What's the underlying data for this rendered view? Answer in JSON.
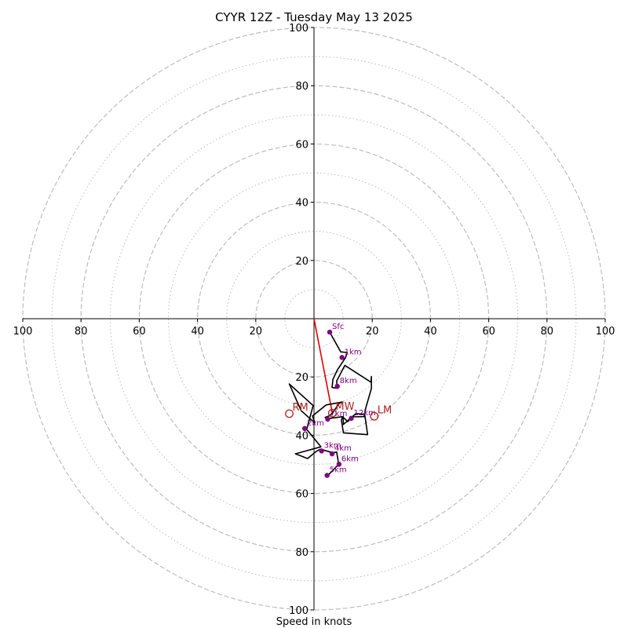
{
  "chart_data": {
    "type": "hodograph",
    "title": "CYYR 12Z - Tuesday May 13 2025",
    "xlabel": "Speed in knots",
    "range": [
      -100,
      100
    ],
    "rings_major": [
      20,
      40,
      60,
      80,
      100
    ],
    "rings_minor": [
      10,
      30,
      50,
      70,
      90
    ],
    "ticks": [
      {
        "v": -100,
        "label": "100"
      },
      {
        "v": -80,
        "label": "80"
      },
      {
        "v": -60,
        "label": "60"
      },
      {
        "v": -40,
        "label": "40"
      },
      {
        "v": -20,
        "label": "20"
      },
      {
        "v": 20,
        "label": "20"
      },
      {
        "v": 40,
        "label": "40"
      },
      {
        "v": 60,
        "label": "60"
      },
      {
        "v": 80,
        "label": "80"
      },
      {
        "v": 100,
        "label": "100"
      }
    ],
    "colors": {
      "grid": "#bdbdbd",
      "axis": "#000000",
      "trace": "#000000",
      "height_points": "#800080",
      "storm_motion": "#b22222",
      "shear_vector": "#e00000"
    },
    "hodograph": [
      [
        5.4,
        -4.6
      ],
      [
        9.2,
        -11.4
      ],
      [
        11.4,
        -11.6
      ],
      [
        10.8,
        -13.4
      ],
      [
        8,
        -17.6
      ],
      [
        6.5,
        -20.8
      ],
      [
        6.2,
        -23.6
      ],
      [
        8,
        -23.9
      ],
      [
        7.8,
        -21.4
      ],
      [
        10.6,
        -16
      ],
      [
        19.6,
        -21.8
      ],
      [
        19.7,
        -19.8
      ],
      [
        19.7,
        -24
      ],
      [
        17.8,
        -30.6
      ],
      [
        17.2,
        -33.6
      ],
      [
        13.2,
        -33.7
      ],
      [
        11.6,
        -35.3
      ],
      [
        9.8,
        -33.7
      ],
      [
        9.4,
        -34.8
      ],
      [
        10.1,
        -39.2
      ],
      [
        18.4,
        -39.8
      ],
      [
        17.4,
        -32.8
      ],
      [
        14.4,
        -32.6
      ],
      [
        10.1,
        -36.3
      ],
      [
        10,
        -33.6
      ],
      [
        4.7,
        -34.3
      ],
      [
        3.8,
        -33.9
      ],
      [
        5.4,
        -33.3
      ],
      [
        6.4,
        -32.3
      ],
      [
        8.7,
        -29
      ],
      [
        9.9,
        -28.6
      ],
      [
        4.2,
        -29.6
      ],
      [
        -0.5,
        -33.4
      ],
      [
        0.3,
        -35.8
      ],
      [
        -4.4,
        -31.6
      ],
      [
        -8.5,
        -22.4
      ],
      [
        -0.3,
        -29.8
      ],
      [
        -2.5,
        -38
      ],
      [
        2.4,
        -44
      ],
      [
        -6.4,
        -46.4
      ],
      [
        -2.2,
        -48
      ],
      [
        0.7,
        -45.6
      ],
      [
        2.2,
        -44.8
      ],
      [
        6.4,
        -46
      ],
      [
        7.8,
        -45.8
      ],
      [
        8.5,
        -50
      ],
      [
        4.4,
        -54.2
      ],
      [
        4.2,
        -53.8
      ]
    ],
    "height_points": [
      {
        "label": "Sfc",
        "u": 5.4,
        "v": -4.6
      },
      {
        "label": "1km",
        "u": 9.6,
        "v": -13.3
      },
      {
        "label": "8km",
        "u": 8,
        "v": -23.2
      },
      {
        "label": "12km",
        "u": 12.8,
        "v": -34.2
      },
      {
        "label": "7km",
        "u": 4.7,
        "v": -34.5
      },
      {
        "label": "2km",
        "u": -3.2,
        "v": -37.7
      },
      {
        "label": "3km",
        "u": 2.6,
        "v": -45.4
      },
      {
        "label": "4km",
        "u": 6.2,
        "v": -46.4
      },
      {
        "label": "6km",
        "u": 8.6,
        "v": -50
      },
      {
        "label": "5km",
        "u": 4.5,
        "v": -53.8
      }
    ],
    "storm_motion": [
      {
        "label": "RM",
        "u": -8.5,
        "v": -32.6
      },
      {
        "label": "MW",
        "u": 6.3,
        "v": -32.4
      },
      {
        "label": "LM",
        "u": 20.7,
        "v": -33.5
      }
    ],
    "shear_vector": {
      "from": [
        0,
        0
      ],
      "to": [
        6.3,
        -32.4
      ]
    }
  }
}
